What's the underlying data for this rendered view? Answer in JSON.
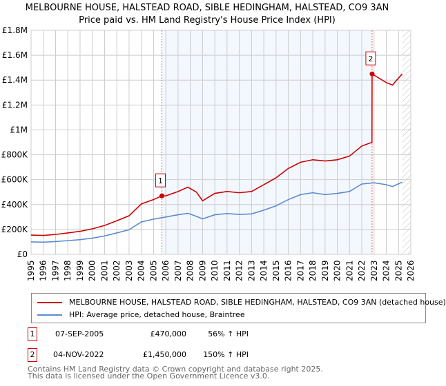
{
  "chart_data": {
    "type": "line",
    "title": "MELBOURNE HOUSE, HALSTEAD ROAD, SIBLE HEDINGHAM, HALSTEAD, CO9 3AN",
    "subtitle": "Price paid vs. HM Land Registry's House Price Index (HPI)",
    "xlim": [
      1995,
      2026
    ],
    "ylim": [
      0,
      1800000
    ],
    "grid": true,
    "x_ticks": [
      "1995",
      "1996",
      "1997",
      "1998",
      "1999",
      "2000",
      "2001",
      "2002",
      "2003",
      "2004",
      "2005",
      "2006",
      "2007",
      "2008",
      "2009",
      "2010",
      "2011",
      "2012",
      "2013",
      "2014",
      "2015",
      "2016",
      "2017",
      "2018",
      "2019",
      "2020",
      "2021",
      "2022",
      "2023",
      "2024",
      "2025",
      "2026"
    ],
    "y_ticks": [
      {
        "v": 0,
        "label": "£0"
      },
      {
        "v": 200000,
        "label": "£200K"
      },
      {
        "v": 400000,
        "label": "£400K"
      },
      {
        "v": 600000,
        "label": "£600K"
      },
      {
        "v": 800000,
        "label": "£800K"
      },
      {
        "v": 1000000,
        "label": "£1M"
      },
      {
        "v": 1200000,
        "label": "£1.2M"
      },
      {
        "v": 1400000,
        "label": "£1.4M"
      },
      {
        "v": 1600000,
        "label": "£1.6M"
      },
      {
        "v": 1800000,
        "label": "£1.8M"
      }
    ],
    "shaded_range": [
      2005.68,
      2022.84
    ],
    "future_hatch_from": 2025.3,
    "series": [
      {
        "name": "MELBOURNE HOUSE, HALSTEAD ROAD, SIBLE HEDINGHAM, HALSTEAD, CO9 3AN (detached house)",
        "color": "#cc0000",
        "x": [
          1995,
          1996,
          1997,
          1998,
          1999,
          2000,
          2001,
          2002,
          2003,
          2004,
          2005,
          2005.68,
          2006,
          2007,
          2007.8,
          2008.5,
          2009,
          2010,
          2011,
          2012,
          2013,
          2014,
          2015,
          2016,
          2017,
          2018,
          2019,
          2020,
          2021,
          2022,
          2022.83,
          2022.84,
          2023,
          2024,
          2024.5,
          2025.3
        ],
        "y": [
          155000,
          152000,
          160000,
          172000,
          185000,
          205000,
          232000,
          270000,
          310000,
          405000,
          440000,
          470000,
          470000,
          505000,
          540000,
          500000,
          430000,
          490000,
          505000,
          495000,
          505000,
          560000,
          615000,
          690000,
          740000,
          760000,
          750000,
          760000,
          790000,
          870000,
          900000,
          1450000,
          1440000,
          1380000,
          1360000,
          1450000
        ]
      },
      {
        "name": "HPI: Average price, detached house, Braintree",
        "color": "#5b8bd0",
        "x": [
          1995,
          1996,
          1997,
          1998,
          1999,
          2000,
          2001,
          2002,
          2003,
          2004,
          2005,
          2006,
          2007,
          2007.8,
          2008.5,
          2009,
          2010,
          2011,
          2012,
          2013,
          2014,
          2015,
          2016,
          2017,
          2018,
          2019,
          2020,
          2021,
          2022,
          2023,
          2024,
          2024.5,
          2025.3
        ],
        "y": [
          100000,
          98000,
          103000,
          110000,
          118000,
          130000,
          148000,
          172000,
          198000,
          260000,
          283000,
          300000,
          318000,
          330000,
          305000,
          285000,
          318000,
          328000,
          320000,
          325000,
          355000,
          390000,
          440000,
          480000,
          495000,
          480000,
          490000,
          505000,
          565000,
          575000,
          560000,
          545000,
          580000
        ]
      }
    ],
    "sales": [
      {
        "label": "1",
        "x": 2005.68,
        "y": 470000
      },
      {
        "label": "2",
        "x": 2022.84,
        "y": 1450000
      }
    ]
  },
  "legend": [
    "MELBOURNE HOUSE, HALSTEAD ROAD, SIBLE HEDINGHAM, HALSTEAD, CO9 3AN (detached house)",
    "HPI: Average price, detached house, Braintree"
  ],
  "table": [
    {
      "num": "1",
      "date": "07-SEP-2005",
      "price": "£470,000",
      "hpi": "56% ↑ HPI"
    },
    {
      "num": "2",
      "date": "04-NOV-2022",
      "price": "£1,450,000",
      "hpi": "150% ↑ HPI"
    }
  ],
  "footer": [
    "Contains HM Land Registry data © Crown copyright and database right 2025.",
    "This data is licensed under the Open Government Licence v3.0."
  ]
}
